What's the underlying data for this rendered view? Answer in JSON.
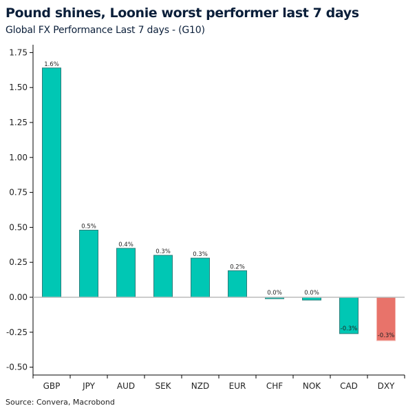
{
  "header": {
    "title": "Pound shines, Loonie worst performer last 7 days",
    "subtitle": "Global FX Performance Last 7 days - (G10)"
  },
  "footer": {
    "source": "Source: Convera, Macrobond"
  },
  "chart_data": {
    "type": "bar",
    "title": "Pound shines, Loonie worst performer last 7 days",
    "subtitle": "Global FX Performance Last 7 days - (G10)",
    "categories": [
      "GBP",
      "JPY",
      "AUD",
      "SEK",
      "NZD",
      "EUR",
      "CHF",
      "NOK",
      "CAD",
      "DXY"
    ],
    "values": [
      1.64,
      0.48,
      0.35,
      0.3,
      0.28,
      0.19,
      -0.01,
      -0.02,
      -0.26,
      -0.31
    ],
    "data_labels": [
      "1.6%",
      "0.5%",
      "0.4%",
      "0.3%",
      "0.3%",
      "0.2%",
      "0.0%",
      "0.0%",
      "-0.3%",
      "-0.3%"
    ],
    "yticks": [
      "1.75",
      "1.50",
      "1.25",
      "1.00",
      "0.75",
      "0.50",
      "0.25",
      "0.00",
      "-0.25",
      "-0.50"
    ],
    "ylim": [
      -0.55,
      1.8
    ],
    "grid": false,
    "colors": {
      "bar": "#00c7b4",
      "bar_border": "#2a7d7a",
      "highlight": "#e8736a",
      "zero_line": "#bbbbbb"
    },
    "highlight_category": "DXY"
  }
}
